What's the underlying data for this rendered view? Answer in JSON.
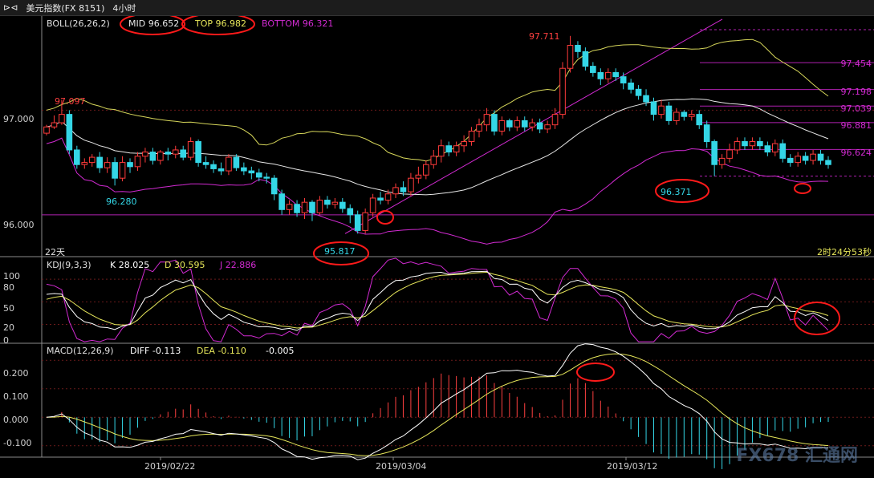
{
  "window": {
    "title_icon": "⊳⊲",
    "instrument": "美元指数(FX 8151)",
    "period": "4小时"
  },
  "boll": {
    "label": "BOLL(26,26,2)",
    "mid": "MID 96.652",
    "top": "TOP 96.982",
    "bottom": "BOTTOM 96.321"
  },
  "kdj": {
    "label": "KDJ(9,3,3)",
    "k": "K 28.025",
    "d": "D 30.595",
    "j": "J 22.886"
  },
  "macd": {
    "label": "MACD(12,26,9)",
    "diff": "DIFF -0.113",
    "dea": "DEA -0.110",
    "value": "-0.005"
  },
  "status": {
    "left": "22天",
    "right": "2时24分53秒"
  },
  "watermark": "FX678 汇通网",
  "colors": {
    "up": "#ff3b3b",
    "down": "#34d6e6",
    "boll_mid": "#e8e8e8",
    "boll_top": "#d6d65a",
    "boll_bottom": "#d22ad2",
    "kdj_k": "#ffffff",
    "kdj_d": "#e6e65a",
    "kdj_j": "#d22ad2",
    "macd_pos": "#ff4040",
    "macd_neg": "#34d6e6",
    "annotation_circle": "#ff1a1a",
    "trendline": "#d22ad2"
  },
  "chart_data": [
    {
      "type": "candlestick",
      "title": "美元指数(FX 8151) 4小时",
      "y_ticks": [
        "97.000",
        "96.000"
      ],
      "x_ticks": [
        "2019/02/22",
        "2019/03/04",
        "2019/03/12"
      ],
      "ylim": [
        95.6,
        97.9
      ],
      "annotated_highs_lows": [
        "97.097",
        "96.280",
        "95.817",
        "97.711",
        "96.371"
      ],
      "fib_levels": [
        "97.454",
        "97.198",
        "97.039",
        "96.881",
        "96.624"
      ],
      "candles": [
        [
          96.78,
          96.84,
          96.76,
          96.86
        ],
        [
          96.84,
          96.88,
          96.82,
          96.95
        ],
        [
          96.88,
          96.96,
          96.86,
          97.1
        ],
        [
          96.96,
          96.62,
          96.58,
          97.0
        ],
        [
          96.62,
          96.48,
          96.44,
          96.66
        ],
        [
          96.48,
          96.5,
          96.44,
          96.54
        ],
        [
          96.5,
          96.55,
          96.46,
          96.58
        ],
        [
          96.55,
          96.45,
          96.4,
          96.6
        ],
        [
          96.45,
          96.5,
          96.4,
          96.55
        ],
        [
          96.5,
          96.35,
          96.28,
          96.55
        ],
        [
          96.35,
          96.5,
          96.32,
          96.56
        ],
        [
          96.5,
          96.46,
          96.4,
          96.54
        ],
        [
          96.46,
          96.56,
          96.42,
          96.6
        ],
        [
          96.56,
          96.6,
          96.5,
          96.64
        ],
        [
          96.6,
          96.52,
          96.48,
          96.64
        ],
        [
          96.52,
          96.6,
          96.48,
          96.62
        ],
        [
          96.6,
          96.58,
          96.52,
          96.64
        ],
        [
          96.58,
          96.62,
          96.54,
          96.66
        ],
        [
          96.62,
          96.55,
          96.52,
          96.66
        ],
        [
          96.55,
          96.7,
          96.52,
          96.74
        ],
        [
          96.7,
          96.5,
          96.46,
          96.72
        ],
        [
          96.5,
          96.48,
          96.44,
          96.56
        ],
        [
          96.48,
          96.44,
          96.4,
          96.52
        ],
        [
          96.44,
          96.42,
          96.38,
          96.5
        ],
        [
          96.42,
          96.55,
          96.38,
          96.58
        ],
        [
          96.55,
          96.45,
          96.42,
          96.58
        ],
        [
          96.45,
          96.42,
          96.38,
          96.5
        ],
        [
          96.42,
          96.4,
          96.34,
          96.46
        ],
        [
          96.4,
          96.36,
          96.32,
          96.44
        ],
        [
          96.36,
          96.35,
          96.3,
          96.4
        ],
        [
          96.35,
          96.2,
          96.14,
          96.38
        ],
        [
          96.2,
          96.05,
          96.0,
          96.24
        ],
        [
          96.05,
          96.1,
          96.0,
          96.14
        ],
        [
          96.1,
          96.02,
          95.98,
          96.14
        ],
        [
          96.02,
          96.12,
          95.96,
          96.16
        ],
        [
          96.12,
          96.02,
          95.94,
          96.14
        ],
        [
          96.02,
          96.14,
          96.0,
          96.18
        ],
        [
          96.14,
          96.1,
          96.06,
          96.18
        ],
        [
          96.1,
          96.12,
          96.06,
          96.16
        ],
        [
          96.12,
          96.06,
          96.02,
          96.16
        ],
        [
          96.06,
          96.0,
          95.92,
          96.1
        ],
        [
          96.0,
          95.85,
          95.82,
          96.04
        ],
        [
          95.85,
          96.02,
          95.82,
          96.06
        ],
        [
          96.02,
          96.16,
          95.98,
          96.2
        ],
        [
          96.16,
          96.14,
          96.1,
          96.22
        ],
        [
          96.14,
          96.2,
          96.1,
          96.24
        ],
        [
          96.2,
          96.26,
          96.16,
          96.3
        ],
        [
          96.26,
          96.22,
          96.18,
          96.32
        ],
        [
          96.22,
          96.35,
          96.18,
          96.4
        ],
        [
          96.35,
          96.38,
          96.3,
          96.46
        ],
        [
          96.38,
          96.48,
          96.34,
          96.52
        ],
        [
          96.48,
          96.56,
          96.44,
          96.62
        ],
        [
          96.56,
          96.66,
          96.5,
          96.72
        ],
        [
          96.66,
          96.6,
          96.56,
          96.7
        ],
        [
          96.6,
          96.66,
          96.56,
          96.7
        ],
        [
          96.66,
          96.7,
          96.6,
          96.76
        ],
        [
          96.7,
          96.8,
          96.66,
          96.84
        ],
        [
          96.8,
          96.86,
          96.74,
          96.92
        ],
        [
          96.86,
          96.96,
          96.8,
          97.02
        ],
        [
          96.96,
          96.8,
          96.76,
          97.0
        ],
        [
          96.8,
          96.9,
          96.76,
          96.94
        ],
        [
          96.9,
          96.84,
          96.8,
          96.92
        ],
        [
          96.84,
          96.9,
          96.8,
          96.94
        ],
        [
          96.9,
          96.84,
          96.8,
          96.94
        ],
        [
          96.84,
          96.88,
          96.8,
          96.92
        ],
        [
          96.88,
          96.82,
          96.78,
          96.92
        ],
        [
          96.82,
          96.86,
          96.78,
          96.9
        ],
        [
          96.86,
          96.96,
          96.82,
          97.02
        ],
        [
          96.96,
          97.4,
          96.92,
          97.46
        ],
        [
          97.4,
          97.62,
          97.36,
          97.71
        ],
        [
          97.62,
          97.56,
          97.5,
          97.66
        ],
        [
          97.56,
          97.42,
          97.38,
          97.6
        ],
        [
          97.42,
          97.36,
          97.32,
          97.46
        ],
        [
          97.36,
          97.3,
          97.24,
          97.4
        ],
        [
          97.3,
          97.36,
          97.26,
          97.4
        ],
        [
          97.36,
          97.32,
          97.28,
          97.4
        ],
        [
          97.32,
          97.26,
          97.2,
          97.36
        ],
        [
          97.26,
          97.2,
          97.16,
          97.3
        ],
        [
          97.2,
          97.14,
          97.1,
          97.24
        ],
        [
          97.14,
          97.08,
          97.04,
          97.2
        ],
        [
          97.08,
          96.96,
          96.9,
          97.12
        ],
        [
          96.96,
          97.04,
          96.92,
          97.1
        ],
        [
          97.04,
          96.9,
          96.86,
          97.08
        ],
        [
          96.9,
          96.98,
          96.86,
          97.02
        ],
        [
          96.98,
          96.94,
          96.9,
          97.0
        ],
        [
          96.94,
          96.96,
          96.9,
          97.0
        ],
        [
          96.96,
          96.86,
          96.82,
          97.0
        ],
        [
          96.86,
          96.7,
          96.64,
          96.9
        ],
        [
          96.7,
          96.48,
          96.37,
          96.72
        ],
        [
          96.48,
          96.54,
          96.44,
          96.58
        ],
        [
          96.54,
          96.62,
          96.5,
          96.68
        ],
        [
          96.62,
          96.7,
          96.58,
          96.74
        ],
        [
          96.7,
          96.66,
          96.62,
          96.74
        ],
        [
          96.66,
          96.7,
          96.62,
          96.74
        ],
        [
          96.7,
          96.66,
          96.62,
          96.74
        ],
        [
          96.66,
          96.6,
          96.56,
          96.7
        ],
        [
          96.6,
          96.68,
          96.56,
          96.72
        ],
        [
          96.68,
          96.54,
          96.5,
          96.72
        ],
        [
          96.54,
          96.5,
          96.46,
          96.58
        ],
        [
          96.5,
          96.56,
          96.46,
          96.6
        ],
        [
          96.56,
          96.52,
          96.48,
          96.6
        ],
        [
          96.52,
          96.58,
          96.48,
          96.62
        ],
        [
          96.58,
          96.52,
          96.48,
          96.62
        ],
        [
          96.52,
          96.48,
          96.44,
          96.56
        ]
      ]
    },
    {
      "type": "line",
      "title": "KDJ(9,3,3)",
      "y_ticks": [
        "100",
        "80",
        "50",
        "20",
        "0"
      ],
      "ylim": [
        -5,
        110
      ]
    },
    {
      "type": "bar",
      "title": "MACD(12,26,9)",
      "y_ticks": [
        "0.200",
        "0.100",
        "0.000",
        "-0.100"
      ],
      "ylim": [
        -0.14,
        0.26
      ]
    }
  ]
}
